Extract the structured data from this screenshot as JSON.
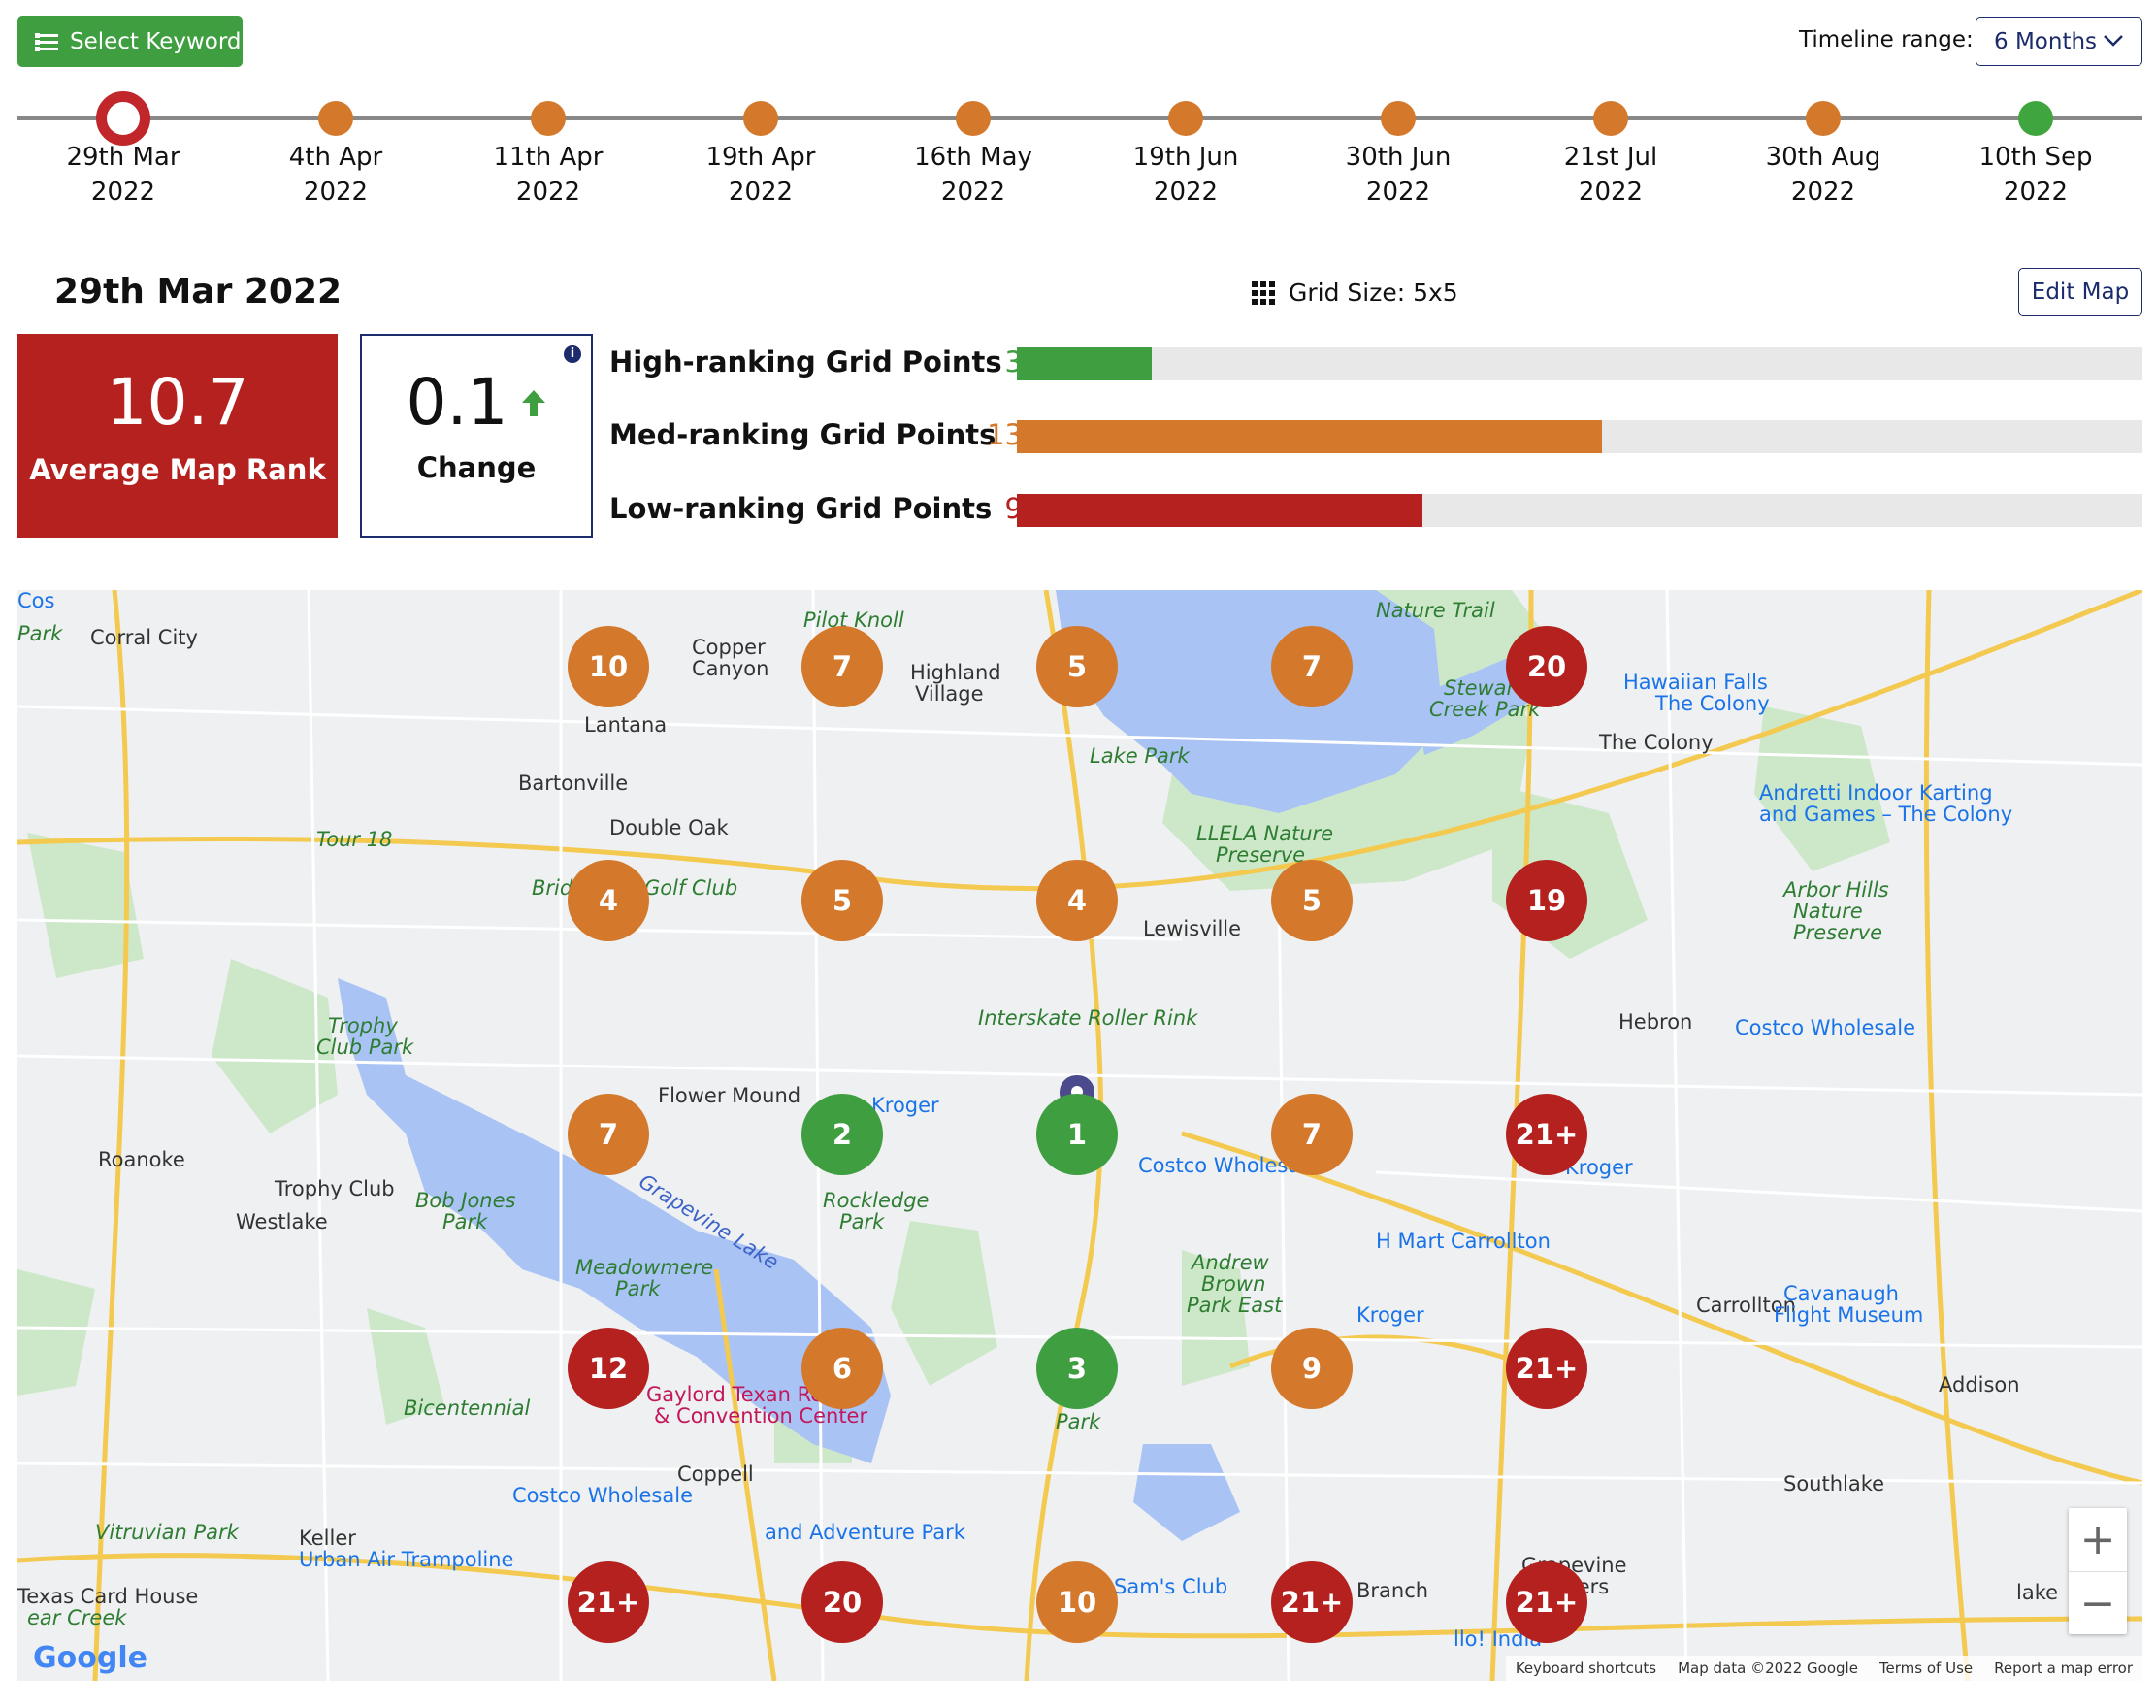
{
  "toolbar": {
    "select_keyword_label": "Select Keyword",
    "timeline_range_label": "Timeline range:",
    "timeline_range_value": "6 Months"
  },
  "timeline": [
    {
      "day": "29th Mar",
      "year": "2022",
      "state": "selected"
    },
    {
      "day": "4th Apr",
      "year": "2022",
      "state": "orange"
    },
    {
      "day": "11th Apr",
      "year": "2022",
      "state": "orange"
    },
    {
      "day": "19th Apr",
      "year": "2022",
      "state": "orange"
    },
    {
      "day": "16th May",
      "year": "2022",
      "state": "orange"
    },
    {
      "day": "19th Jun",
      "year": "2022",
      "state": "orange"
    },
    {
      "day": "30th Jun",
      "year": "2022",
      "state": "orange"
    },
    {
      "day": "21st Jul",
      "year": "2022",
      "state": "orange"
    },
    {
      "day": "30th Aug",
      "year": "2022",
      "state": "orange"
    },
    {
      "day": "10th Sep",
      "year": "2022",
      "state": "green"
    }
  ],
  "header": {
    "date_title": "29th Mar 2022",
    "grid_size_label": "Grid Size: 5x5",
    "edit_map_label": "Edit Map"
  },
  "stats": {
    "average_rank_value": "10.7",
    "average_rank_label": "Average Map Rank",
    "change_value": "0.1",
    "change_label": "Change",
    "change_direction": "up"
  },
  "ranking_bars": [
    {
      "label": "High-ranking Grid Points",
      "count": 3,
      "color": "#3e9e40"
    },
    {
      "label": "Med-ranking Grid Points",
      "count": 13,
      "color": "#d4782b"
    },
    {
      "label": "Low-ranking Grid Points",
      "count": 9,
      "color": "#b4211f"
    }
  ],
  "grid_total": 25,
  "colors": {
    "high": "#3e9e40",
    "med": "#d4782b",
    "low": "#b4211f",
    "selected_ring": "#c0262a",
    "accent": "#1b2b6b"
  },
  "grid_ranks": [
    [
      "10",
      "7",
      "5",
      "7",
      "20"
    ],
    [
      "4",
      "5",
      "4",
      "5",
      "19"
    ],
    [
      "7",
      "2",
      "1",
      "7",
      "21+"
    ],
    [
      "12",
      "6",
      "3",
      "9",
      "21+"
    ],
    [
      "21+",
      "20",
      "10",
      "21+",
      "21+"
    ]
  ],
  "grid_levels": [
    [
      "med",
      "med",
      "med",
      "med",
      "low"
    ],
    [
      "med",
      "med",
      "med",
      "med",
      "low"
    ],
    [
      "med",
      "high",
      "high",
      "med",
      "low"
    ],
    [
      "low",
      "med",
      "high",
      "med",
      "low"
    ],
    [
      "low",
      "low",
      "med",
      "low",
      "low"
    ]
  ],
  "map": {
    "places": [
      {
        "text": "Corral City",
        "cls": ""
      },
      {
        "text": "Copper",
        "cls": ""
      },
      {
        "text": "Canyon",
        "cls": ""
      },
      {
        "text": "Pilot Knoll",
        "cls": "green"
      },
      {
        "text": "Highland",
        "cls": ""
      },
      {
        "text": "Village",
        "cls": ""
      },
      {
        "text": "Nature Trail",
        "cls": "green"
      },
      {
        "text": "Lantana",
        "cls": ""
      },
      {
        "text": "Lake Park",
        "cls": "green"
      },
      {
        "text": "Stewart",
        "cls": "green"
      },
      {
        "text": "Creek Park",
        "cls": "green"
      },
      {
        "text": "Hawaiian Falls",
        "cls": "blue"
      },
      {
        "text": "The Colony",
        "cls": "blue"
      },
      {
        "text": "The Colony",
        "cls": ""
      },
      {
        "text": "Bartonville",
        "cls": ""
      },
      {
        "text": "Double Oak",
        "cls": ""
      },
      {
        "text": "Tour 18",
        "cls": "green"
      },
      {
        "text": "LLELA Nature",
        "cls": "green"
      },
      {
        "text": "Preserve",
        "cls": "green"
      },
      {
        "text": "Andretti Indoor Karting",
        "cls": "blue"
      },
      {
        "text": "and Games – The Colony",
        "cls": "blue"
      },
      {
        "text": "Bridl",
        "cls": "green"
      },
      {
        "text": "Golf Club",
        "cls": "green"
      },
      {
        "text": "Lewisville",
        "cls": ""
      },
      {
        "text": "Arbor Hills",
        "cls": "green"
      },
      {
        "text": "Nature",
        "cls": "green"
      },
      {
        "text": "Preserve",
        "cls": "green"
      },
      {
        "text": "Trophy",
        "cls": "green"
      },
      {
        "text": "Club Park",
        "cls": "green"
      },
      {
        "text": "Interskate Roller Rink",
        "cls": "green"
      },
      {
        "text": "Hebron",
        "cls": ""
      },
      {
        "text": "Costco Wholesale",
        "cls": "blue"
      },
      {
        "text": "Flower Mound",
        "cls": ""
      },
      {
        "text": "Kroger",
        "cls": "blue"
      },
      {
        "text": "Roanoke",
        "cls": ""
      },
      {
        "text": "Trophy Club",
        "cls": ""
      },
      {
        "text": "Bob Jones",
        "cls": "green"
      },
      {
        "text": "Park",
        "cls": "green"
      },
      {
        "text": "Westlake",
        "cls": ""
      },
      {
        "text": "Rockledge",
        "cls": "green"
      },
      {
        "text": "Park",
        "cls": "green"
      },
      {
        "text": "Costco Wholesa",
        "cls": "blue"
      },
      {
        "text": "Kroger",
        "cls": "blue"
      },
      {
        "text": "H Mart Carrollton",
        "cls": "blue"
      },
      {
        "text": "Grapevine Lake",
        "cls": "lake"
      },
      {
        "text": "Meadowmere",
        "cls": "green"
      },
      {
        "text": "Park",
        "cls": "green"
      },
      {
        "text": "Andrew",
        "cls": "green"
      },
      {
        "text": "Brown",
        "cls": "green"
      },
      {
        "text": "Park East",
        "cls": "green"
      },
      {
        "text": "Kroger",
        "cls": "blue"
      },
      {
        "text": "Carrollton",
        "cls": ""
      },
      {
        "text": "Cavanaugh",
        "cls": "blue"
      },
      {
        "text": "Flight Museum",
        "cls": "blue"
      },
      {
        "text": "Gaylord Texan Re",
        "cls": "pink"
      },
      {
        "text": "& Convention Center",
        "cls": "pink"
      },
      {
        "text": "Addison",
        "cls": ""
      },
      {
        "text": "Bicentennial",
        "cls": "green"
      },
      {
        "text": "Park",
        "cls": "green"
      },
      {
        "text": "Coppell",
        "cls": ""
      },
      {
        "text": "Costco Wholesale",
        "cls": "blue"
      },
      {
        "text": "Southlake",
        "cls": ""
      },
      {
        "text": "Vitruvian Park",
        "cls": "green"
      },
      {
        "text": "Keller",
        "cls": ""
      },
      {
        "text": "Urban Air Trampoline",
        "cls": "blue"
      },
      {
        "text": "and Adventure Park",
        "cls": "blue"
      },
      {
        "text": "Grapevine",
        "cls": ""
      },
      {
        "text": "Farmers",
        "cls": ""
      },
      {
        "text": "Branch",
        "cls": ""
      },
      {
        "text": "Sam's Club",
        "cls": "blue"
      },
      {
        "text": "llo! India",
        "cls": "blue"
      },
      {
        "text": "Texas Card House",
        "cls": ""
      },
      {
        "text": "ear Creek",
        "cls": "green"
      },
      {
        "text": "Park",
        "cls": "green"
      },
      {
        "text": "lake",
        "cls": ""
      },
      {
        "text": "Cos",
        "cls": "blue"
      }
    ],
    "zoom_in": "+",
    "zoom_out": "−",
    "footer": [
      "Keyboard shortcuts",
      "Map data ©2022 Google",
      "Terms of Use",
      "Report a map error"
    ],
    "google_logo": "Google"
  }
}
